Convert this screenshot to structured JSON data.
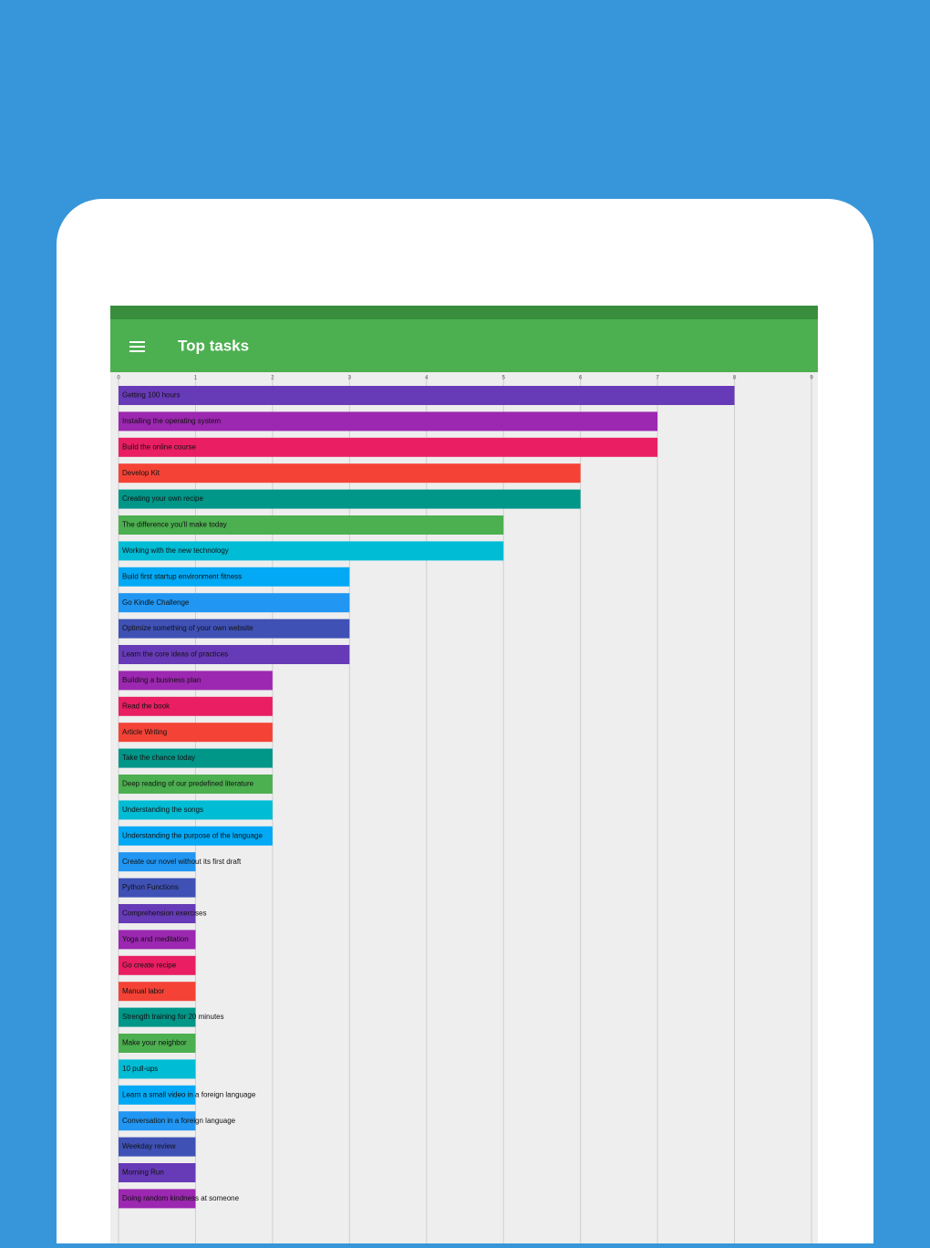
{
  "header": {
    "title": "Top tasks"
  },
  "chart_data": {
    "type": "barh",
    "categories": [
      "Getting 100 hours",
      "Installing the operating system",
      "Build the online course",
      "Develop Kit",
      "Creating your own recipe",
      "The difference you'll make today",
      "Working with the new technology",
      "Build first startup environment fitness",
      "Go Kindle Challenge",
      "Optimize something of your own website",
      "Learn the core ideas of practices",
      "Building a business plan",
      "Read the book",
      "Article Writing",
      "Take the chance today",
      "Deep reading of our predefined literature",
      "Understanding the songs",
      "Understanding the purpose of the language",
      "Create our novel without its first draft",
      "Python Functions",
      "Comprehension exercises",
      "Yoga and meditation",
      "Go create recipe",
      "Manual labor",
      "Strength training for 20 minutes",
      "Make your neighbor",
      "10 pull-ups",
      "Learn a small video in a foreign language",
      "Conversation in a foreign language",
      "Weekday review",
      "Morning Run",
      "Doing random kindness at someone"
    ],
    "values": [
      8,
      7,
      7,
      6,
      6,
      5,
      5,
      3,
      3,
      3,
      3,
      2,
      2,
      2,
      2,
      2,
      2,
      2,
      1,
      1,
      1,
      1,
      1,
      1,
      1,
      1,
      1,
      1,
      1,
      1,
      1,
      1
    ],
    "colors": [
      "#673ab7",
      "#9c27b0",
      "#e91e63",
      "#f44336",
      "#009688",
      "#4caf50",
      "#00bcd4",
      "#03a9f4",
      "#2196f3",
      "#3f51b5"
    ],
    "xlim": [
      0,
      9
    ],
    "xticks": [
      0,
      1,
      2,
      3,
      4,
      5,
      6,
      7,
      8,
      9
    ],
    "grid": true
  }
}
